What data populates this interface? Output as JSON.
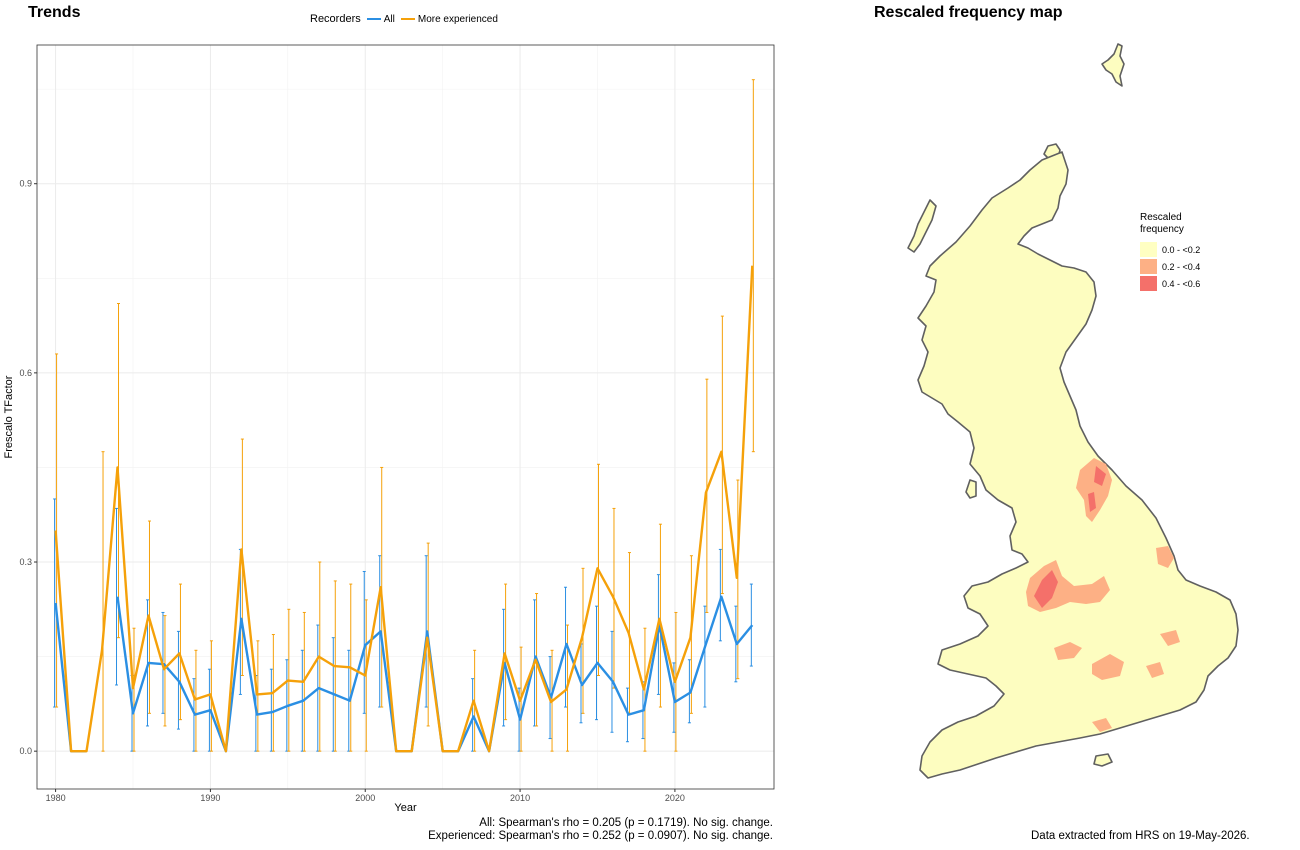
{
  "trends": {
    "title": "Trends",
    "legend_title": "Recorders",
    "stats_line1": "All: Spearman's rho = 0.205 (p = 0.1719). No sig. change.",
    "stats_line2": "Experienced: Spearman's rho = 0.252 (p = 0.0907). No sig. change."
  },
  "map": {
    "title": "Rescaled frequency map",
    "legend_title": "Rescaled frequency",
    "legend_items": [
      {
        "label": "0.0 - <0.2",
        "color": "#ffffc2"
      },
      {
        "label": "0.2 - <0.4",
        "color": "#fdb085"
      },
      {
        "label": "0.4 - <0.6",
        "color": "#f4706a"
      }
    ],
    "credit": "Data extracted from HRS on 19-May-2026."
  },
  "chart_data": {
    "type": "line",
    "xlabel": "Year",
    "ylabel": "Frescalo TFactor",
    "xlim": [
      1978.8,
      2026.4
    ],
    "ylim": [
      -0.06,
      1.12
    ],
    "xticks": [
      1980,
      1990,
      2000,
      2010,
      2020
    ],
    "yticks": [
      0.0,
      0.3,
      0.6,
      0.9
    ],
    "ytick_labels": [
      "0.0",
      "0.3",
      "0.6",
      "0.9"
    ],
    "grid": true,
    "legend_position": "top",
    "x": [
      1980,
      1981,
      1982,
      1983,
      1984,
      1985,
      1986,
      1987,
      1988,
      1989,
      1990,
      1991,
      1992,
      1993,
      1994,
      1995,
      1996,
      1997,
      1998,
      1999,
      2000,
      2001,
      2002,
      2003,
      2004,
      2005,
      2006,
      2007,
      2008,
      2009,
      2010,
      2011,
      2012,
      2013,
      2014,
      2015,
      2016,
      2017,
      2018,
      2019,
      2020,
      2021,
      2022,
      2023,
      2024,
      2025
    ],
    "series": [
      {
        "name": "All",
        "color": "#2b8fe3",
        "values": [
          0.235,
          0,
          0,
          null,
          0.245,
          0.06,
          0.14,
          0.138,
          0.11,
          0.058,
          0.065,
          0,
          0.21,
          0.058,
          0.062,
          0.072,
          0.08,
          0.1,
          0.09,
          0.08,
          0.168,
          0.19,
          0,
          0,
          0.19,
          0,
          0,
          0.055,
          0,
          0.14,
          0.05,
          0.15,
          0.085,
          0.17,
          0.105,
          0.14,
          0.11,
          0.058,
          0.065,
          0.2,
          0.078,
          0.093,
          0.17,
          0.245,
          0.17,
          0.2
        ],
        "lower": [
          0.07,
          null,
          null,
          null,
          0.105,
          0.0,
          0.04,
          0.06,
          0.035,
          0.0,
          0.0,
          null,
          0.09,
          0.0,
          0.0,
          0.0,
          0.0,
          0.0,
          0.0,
          0.0,
          0.06,
          0.07,
          null,
          null,
          0.07,
          null,
          null,
          0.0,
          null,
          0.04,
          0.0,
          0.04,
          0.02,
          0.07,
          0.045,
          0.05,
          0.03,
          0.015,
          0.02,
          0.09,
          0.03,
          0.045,
          0.07,
          0.175,
          0.11,
          0.135
        ],
        "upper": [
          0.4,
          null,
          null,
          null,
          0.385,
          0.12,
          0.24,
          0.22,
          0.19,
          0.115,
          0.13,
          null,
          0.32,
          0.12,
          0.13,
          0.145,
          0.16,
          0.2,
          0.18,
          0.16,
          0.285,
          0.31,
          null,
          null,
          0.31,
          null,
          null,
          0.115,
          null,
          0.225,
          0.1,
          0.24,
          0.15,
          0.26,
          0.17,
          0.23,
          0.19,
          0.1,
          0.11,
          0.28,
          0.14,
          0.145,
          0.23,
          0.32,
          0.23,
          0.265
        ]
      },
      {
        "name": "More experienced",
        "color": "#f5a10a",
        "values": [
          0.35,
          0,
          0,
          0.16,
          0.45,
          0.1,
          0.215,
          0.13,
          0.155,
          0.082,
          0.09,
          0,
          0.32,
          0.09,
          0.092,
          0.112,
          0.11,
          0.15,
          0.135,
          0.133,
          0.12,
          0.26,
          0,
          0,
          0.18,
          0,
          0,
          0.08,
          0,
          0.155,
          0.08,
          0.145,
          0.078,
          0.098,
          0.18,
          0.29,
          0.245,
          0.188,
          0.098,
          0.21,
          0.11,
          0.18,
          0.41,
          0.475,
          0.275,
          0.77
        ],
        "lower": [
          0.07,
          null,
          null,
          0.0,
          0.18,
          0.0,
          0.06,
          0.04,
          0.05,
          0.0,
          0.0,
          null,
          0.12,
          0.0,
          0.0,
          0.0,
          0.0,
          0.0,
          0.0,
          0.0,
          0.0,
          0.07,
          null,
          null,
          0.04,
          null,
          null,
          0.0,
          null,
          0.05,
          0.0,
          0.04,
          0.0,
          0.0,
          0.06,
          0.12,
          0.1,
          0.06,
          0.0,
          0.07,
          0.0,
          0.06,
          0.22,
          0.25,
          0.115,
          0.475
        ],
        "upper": [
          0.63,
          null,
          null,
          0.475,
          0.71,
          0.195,
          0.365,
          0.215,
          0.265,
          0.16,
          0.175,
          null,
          0.495,
          0.175,
          0.185,
          0.225,
          0.22,
          0.3,
          0.27,
          0.265,
          0.24,
          0.45,
          null,
          null,
          0.33,
          null,
          null,
          0.16,
          null,
          0.265,
          0.165,
          0.25,
          0.16,
          0.2,
          0.29,
          0.455,
          0.385,
          0.315,
          0.195,
          0.36,
          0.22,
          0.31,
          0.59,
          0.69,
          0.43,
          1.065
        ]
      }
    ]
  }
}
